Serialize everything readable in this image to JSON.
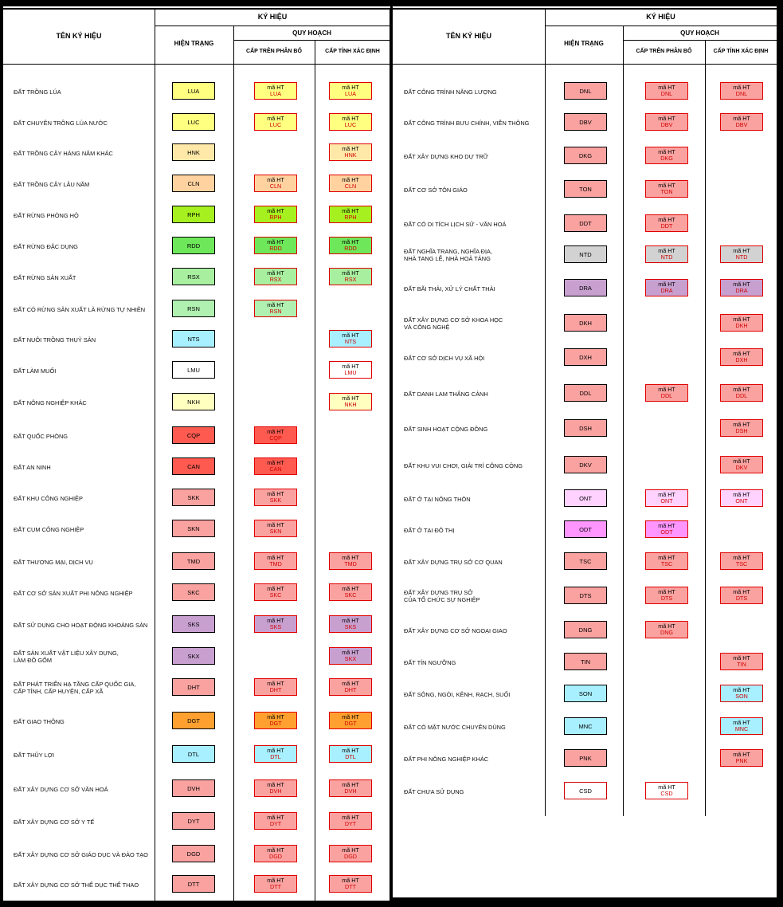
{
  "header": {
    "ten_ky_hieu": "TÊN KÝ HIỆU",
    "ky_hieu": "KÝ HIỆU",
    "hien_trang": "HIỆN TRẠNG",
    "quy_hoach": "QUY HOẠCH",
    "cap_tren": "CẤP TRÊN PHÂN BỔ",
    "cap_tinh": "CẤP TỈNH XÁC ĐỊNH"
  },
  "plan_prefix": "mã HT",
  "left_rows": [
    {
      "name": "ĐẤT TRỒNG LÚA",
      "code": "LUA",
      "color": "#ffff80",
      "above": true,
      "province": "hatch"
    },
    {
      "name": "ĐẤT CHUYÊN TRỒNG LÚA NƯỚC",
      "code": "LUC",
      "color": "#ffff80",
      "above": true,
      "province": "hatch"
    },
    {
      "name": "ĐẤT TRỒNG CÂY HÀNG NĂM KHÁC",
      "code": "HNK",
      "color": "#ffe8a8",
      "above": false,
      "province": "solid"
    },
    {
      "name": "ĐẤT TRỒNG CÂY LÂU NĂM",
      "code": "CLN",
      "color": "#ffd2a0",
      "above": true,
      "province": "hatch"
    },
    {
      "name": "ĐẤT RỪNG PHÒNG HỘ",
      "code": "RPH",
      "color": "#a6f020",
      "above": true,
      "province": "hatch"
    },
    {
      "name": "ĐẤT RỪNG ĐẶC DỤNG",
      "code": "RDD",
      "color": "#6ee85a",
      "above": true,
      "province": "hatch"
    },
    {
      "name": "ĐẤT RỪNG SẢN XUẤT",
      "code": "RSX",
      "color": "#a8f0a0",
      "above": true,
      "province": "hatch"
    },
    {
      "name": "ĐẤT CÓ RỪNG SẢN XUẤT LÀ RỪNG TỰ NHIÊN",
      "code": "RSN",
      "color": "#b0f0b0",
      "above": true,
      "province": "none"
    },
    {
      "name": "ĐẤT NUÔI TRỒNG THUỶ SẢN",
      "code": "NTS",
      "color": "#a8f0ff",
      "above": false,
      "province": "solid"
    },
    {
      "name": "ĐẤT LÀM MUỐI",
      "code": "LMU",
      "color": "#ffffff",
      "above": false,
      "province": "grid"
    },
    {
      "name": "ĐẤT NÔNG NGHIỆP KHÁC",
      "code": "NKH",
      "color": "#ffffc0",
      "above": false,
      "province": "solid"
    },
    {
      "name": "ĐẤT QUỐC PHÒNG",
      "code": "CQP",
      "color": "#ff5a50",
      "above": true,
      "province": "none"
    },
    {
      "name": "ĐẤT AN NINH",
      "code": "CAN",
      "color": "#ff5a50",
      "above": true,
      "province": "none"
    },
    {
      "name": "ĐẤT KHU CÔNG NGHIỆP",
      "code": "SKK",
      "color": "#faa2a0",
      "above": true,
      "province": "none"
    },
    {
      "name": "ĐẤT CỤM CÔNG NGHIỆP",
      "code": "SKN",
      "color": "#faa2a0",
      "above": true,
      "province": "none"
    },
    {
      "name": "ĐẤT THƯƠNG MẠI, DỊCH VỤ",
      "code": "TMD",
      "color": "#faa2a0",
      "above": true,
      "province": "hatch"
    },
    {
      "name": "ĐẤT CƠ SỞ SẢN XUẤT PHI NÔNG NGHIỆP",
      "code": "SKC",
      "color": "#faa2a0",
      "above": true,
      "province": "hatch"
    },
    {
      "name": "ĐẤT SỬ DỤNG CHO HOẠT ĐỘNG KHOÁNG SẢN",
      "code": "SKS",
      "color": "#c8a0d0",
      "above": true,
      "province": "hatch"
    },
    {
      "name": "ĐẤT SẢN XUẤT VẬT LIỆU XÂY DỰNG,\nLÀM ĐỒ GỐM",
      "code": "SKX",
      "color": "#c8a0d0",
      "above": false,
      "province": "solid"
    },
    {
      "name": "ĐẤT PHÁT TRIỂN HẠ TẦNG CẤP QUỐC GIA,\nCẤP TỈNH, CẤP HUYỆN, CẤP XÃ",
      "code": "DHT",
      "color": "#faa2a0",
      "above": true,
      "province": "hatch"
    },
    {
      "name": "ĐẤT GIAO THÔNG",
      "code": "DGT",
      "color": "#ffa030",
      "above": true,
      "province": "hatch"
    },
    {
      "name": "ĐẤT THỦY LỢI",
      "code": "DTL",
      "color": "#a8f0ff",
      "above": true,
      "province": "hatch"
    },
    {
      "name": "ĐẤT XÂY DỰNG CƠ SỞ VĂN HOÁ",
      "code": "DVH",
      "color": "#faa2a0",
      "above": true,
      "province": "hatch"
    },
    {
      "name": "ĐẤT XÂY DỰNG CƠ SỞ Y TẾ",
      "code": "DYT",
      "color": "#faa2a0",
      "above": true,
      "province": "hatch"
    },
    {
      "name": "ĐẤT XÂY DỰNG CƠ SỞ GIÁO DỤC VÀ ĐÀO TẠO",
      "code": "DGD",
      "color": "#faa2a0",
      "above": true,
      "province": "hatch"
    },
    {
      "name": "ĐẤT XÂY DỰNG CƠ SỞ THỂ DỤC THỂ THAO",
      "code": "DTT",
      "color": "#faa2a0",
      "above": true,
      "province": "hatch"
    }
  ],
  "right_rows": [
    {
      "name": "ĐẤT CÔNG TRÌNH NĂNG LƯỢNG",
      "code": "DNL",
      "color": "#faa2a0",
      "above": true,
      "province": "hatch"
    },
    {
      "name": "ĐẤT CÔNG TRÌNH BƯU CHÍNH, VIỄN THÔNG",
      "code": "DBV",
      "color": "#faa2a0",
      "above": true,
      "province": "hatch"
    },
    {
      "name": "ĐẤT XÂY DỰNG KHO DỰ TRỮ",
      "code": "DKG",
      "color": "#faa2a0",
      "above": true,
      "province": "none"
    },
    {
      "name": "ĐẤT CƠ SỞ TÔN GIÁO",
      "code": "TON",
      "color": "#faa2a0",
      "above": true,
      "province": "none"
    },
    {
      "name": "ĐẤT CÓ DI TÍCH LỊCH SỬ - VĂN HOÁ",
      "code": "DDT",
      "color": "#faa2a0",
      "above": true,
      "province": "none"
    },
    {
      "name": "ĐẤT NGHĨA TRANG, NGHĨA ĐỊA,\nNHÀ TANG LỄ, NHÀ HOẢ TÁNG",
      "code": "NTD",
      "color": "#d2d2d2",
      "above": true,
      "province": "hatch"
    },
    {
      "name": "ĐẤT BÃI THẢI, XỬ LÝ CHẤT THẢI",
      "code": "DRA",
      "color": "#c8a0d0",
      "above": true,
      "province": "hatch"
    },
    {
      "name": "ĐẤT XÂY DỰNG CƠ SỞ KHOA HỌC\nVÀ CÔNG NGHỆ",
      "code": "DKH",
      "color": "#faa2a0",
      "above": false,
      "province": "hatch"
    },
    {
      "name": "ĐẤT CƠ SỞ DỊCH VỤ XÃ HỘI",
      "code": "DXH",
      "color": "#faa2a0",
      "above": false,
      "province": "hatch"
    },
    {
      "name": "ĐẤT DANH LAM THẮNG CẢNH",
      "code": "DDL",
      "color": "#faa2a0",
      "above": true,
      "province": "hatch"
    },
    {
      "name": "ĐẤT SINH HOẠT CỘNG ĐỒNG",
      "code": "DSH",
      "color": "#faa2a0",
      "above": false,
      "province": "hatch"
    },
    {
      "name": "ĐẤT KHU VUI CHƠI, GIẢI TRÍ CÔNG CỘNG",
      "code": "DKV",
      "color": "#faa2a0",
      "above": false,
      "province": "hatch"
    },
    {
      "name": "ĐẤT Ở TẠI NÔNG THÔN",
      "code": "ONT",
      "color": "#ffd2ff",
      "above": true,
      "province": "hatch"
    },
    {
      "name": "ĐẤT Ở TẠI ĐÔ THỊ",
      "code": "ODT",
      "color": "#ff96ff",
      "above": true,
      "province": "none"
    },
    {
      "name": "ĐẤT XÂY DỰNG TRỤ SỞ CƠ QUAN",
      "code": "TSC",
      "color": "#faa2a0",
      "above": true,
      "province": "hatch"
    },
    {
      "name": "ĐẤT XÂY DỰNG TRỤ SỞ\nCỦA TỔ CHỨC SỰ NGHIỆP",
      "code": "DTS",
      "color": "#faa2a0",
      "above": true,
      "province": "hatch"
    },
    {
      "name": "ĐẤT XÂY DỰNG CƠ SỞ NGOẠI GIAO",
      "code": "DNG",
      "color": "#faa2a0",
      "above": true,
      "province": "none"
    },
    {
      "name": "ĐẤT TÍN NGƯỠNG",
      "code": "TIN",
      "color": "#faa2a0",
      "above": false,
      "province": "solid"
    },
    {
      "name": "ĐẤT SÔNG, NGÒI, KÊNH, RẠCH, SUỐI",
      "code": "SON",
      "color": "#a8f0ff",
      "above": false,
      "province": "solid"
    },
    {
      "name": "ĐẤT CÓ MẶT NƯỚC CHUYÊN DÙNG",
      "code": "MNC",
      "color": "#a8f0ff",
      "above": false,
      "province": "solid"
    },
    {
      "name": "ĐẤT PHI NÔNG NGHIỆP KHÁC",
      "code": "PNK",
      "color": "#faa2a0",
      "above": false,
      "province": "solid"
    },
    {
      "name": "ĐẤT CHƯA SỬ DỤNG",
      "code": "CSD",
      "color": "#ffffff",
      "above": true,
      "province": "none"
    }
  ]
}
